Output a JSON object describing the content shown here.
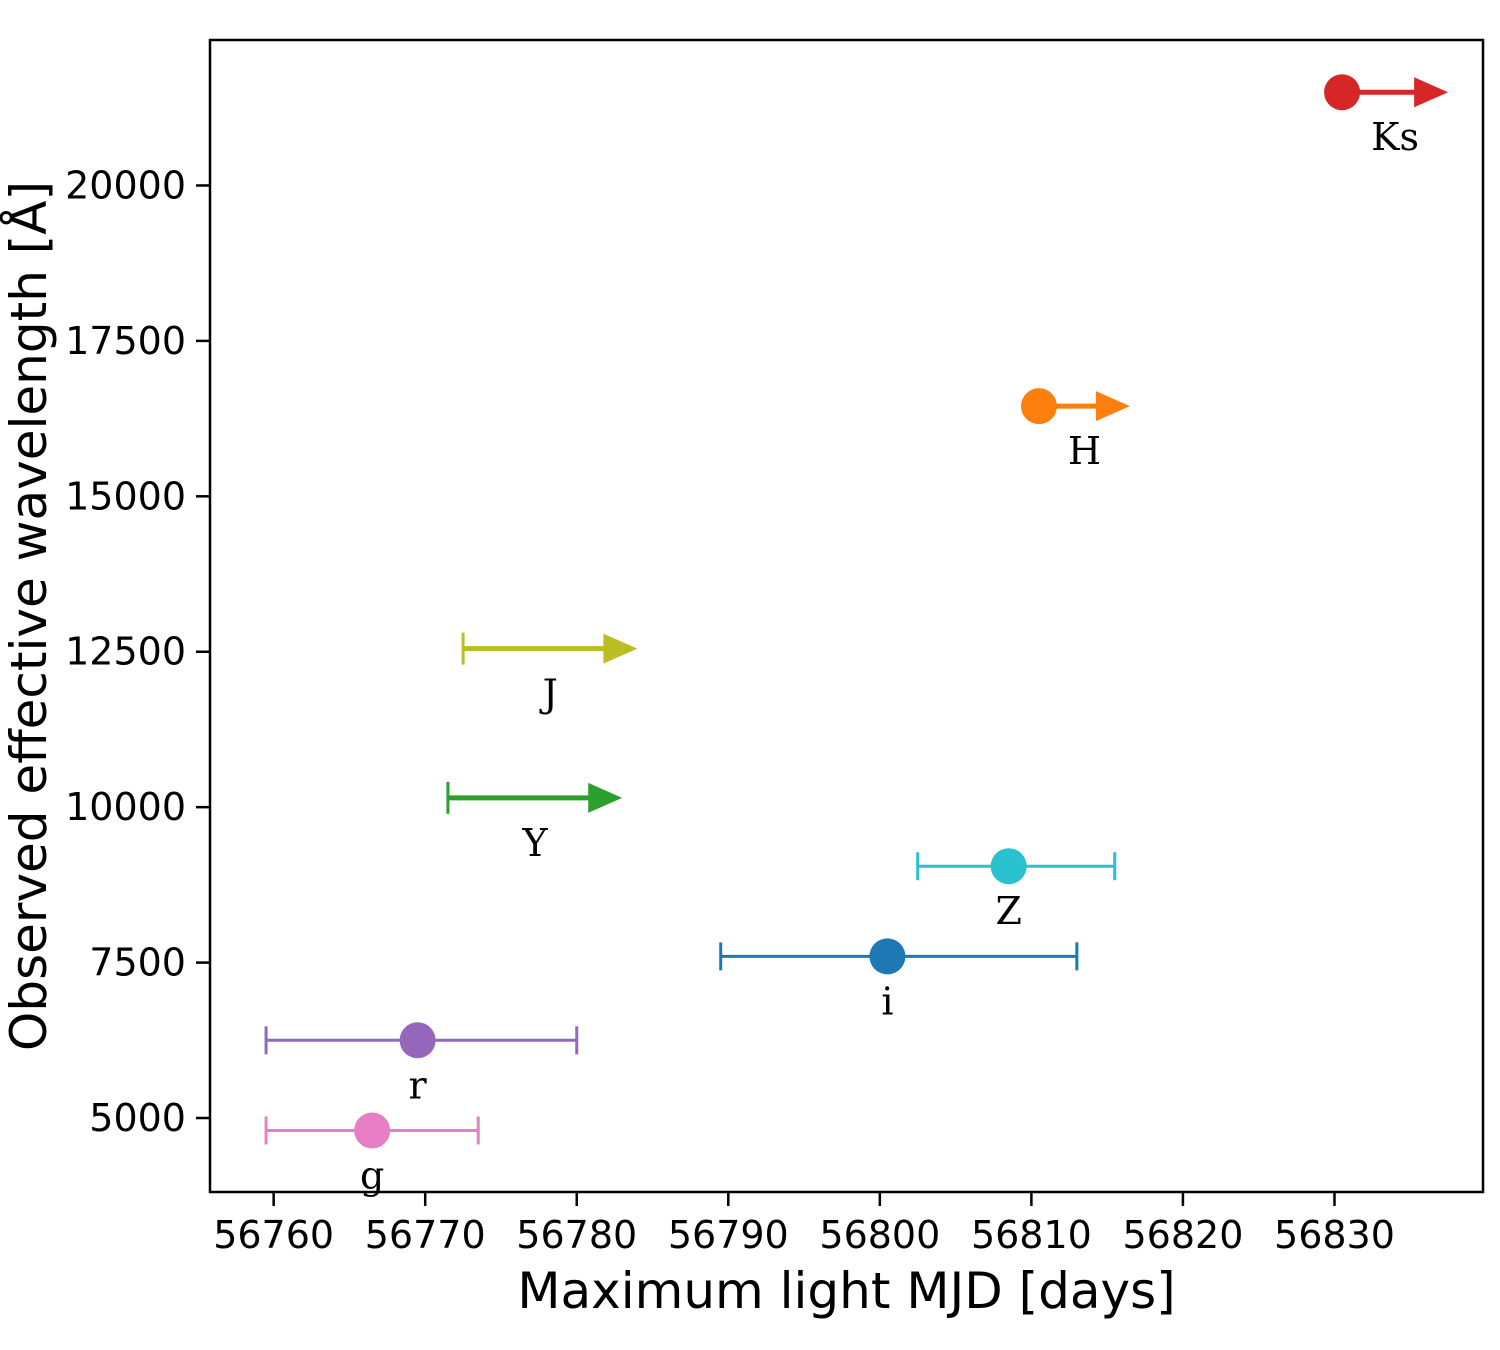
{
  "figure": {
    "background": "#ffffff"
  },
  "chart_data": {
    "type": "scatter",
    "title": "",
    "xlabel": "Maximum light MJD [days]",
    "ylabel": "Observed effective wavelength [Å]",
    "xlim": [
      56755.8,
      56839.8
    ],
    "ylim": [
      3810,
      22340
    ],
    "xticks": [
      56760,
      56770,
      56780,
      56790,
      56800,
      56810,
      56820,
      56830
    ],
    "yticks": [
      5000,
      7500,
      10000,
      12500,
      15000,
      17500,
      20000
    ],
    "grid": false,
    "legend": "none",
    "frame_color": "#000000",
    "points": [
      {
        "label": "g",
        "color": "#e87ec6",
        "x": 56766.5,
        "y": 4800,
        "xerr": [
          56759.5,
          56773.5
        ],
        "marker": true,
        "arrow_to": null,
        "lower_limit": false
      },
      {
        "label": "r",
        "color": "#9467bd",
        "x": 56769.5,
        "y": 6250,
        "xerr": [
          56759.5,
          56780.0
        ],
        "marker": true,
        "arrow_to": null,
        "lower_limit": false
      },
      {
        "label": "i",
        "color": "#1f77b4",
        "x": 56800.5,
        "y": 7600,
        "xerr": [
          56789.5,
          56813.0
        ],
        "marker": true,
        "arrow_to": null,
        "lower_limit": false
      },
      {
        "label": "Z",
        "color": "#29c0d0",
        "x": 56808.5,
        "y": 9050,
        "xerr": [
          56802.5,
          56815.5
        ],
        "marker": true,
        "arrow_to": null,
        "lower_limit": false
      },
      {
        "label": "Y",
        "color": "#2ca02c",
        "x": 56771.5,
        "y": 10150,
        "xerr": null,
        "marker": false,
        "arrow_to": 56783.0,
        "lower_limit": true
      },
      {
        "label": "J",
        "color": "#bcbd22",
        "x": 56772.5,
        "y": 12550,
        "xerr": null,
        "marker": false,
        "arrow_to": 56784.0,
        "lower_limit": true
      },
      {
        "label": "H",
        "color": "#ff7f0e",
        "x": 56810.5,
        "y": 16450,
        "xerr": null,
        "marker": true,
        "arrow_to": 56816.5,
        "lower_limit": true
      },
      {
        "label": "Ks",
        "color": "#d62728",
        "x": 56830.5,
        "y": 21500,
        "xerr": null,
        "marker": true,
        "arrow_to": 56837.5,
        "lower_limit": true
      }
    ]
  }
}
